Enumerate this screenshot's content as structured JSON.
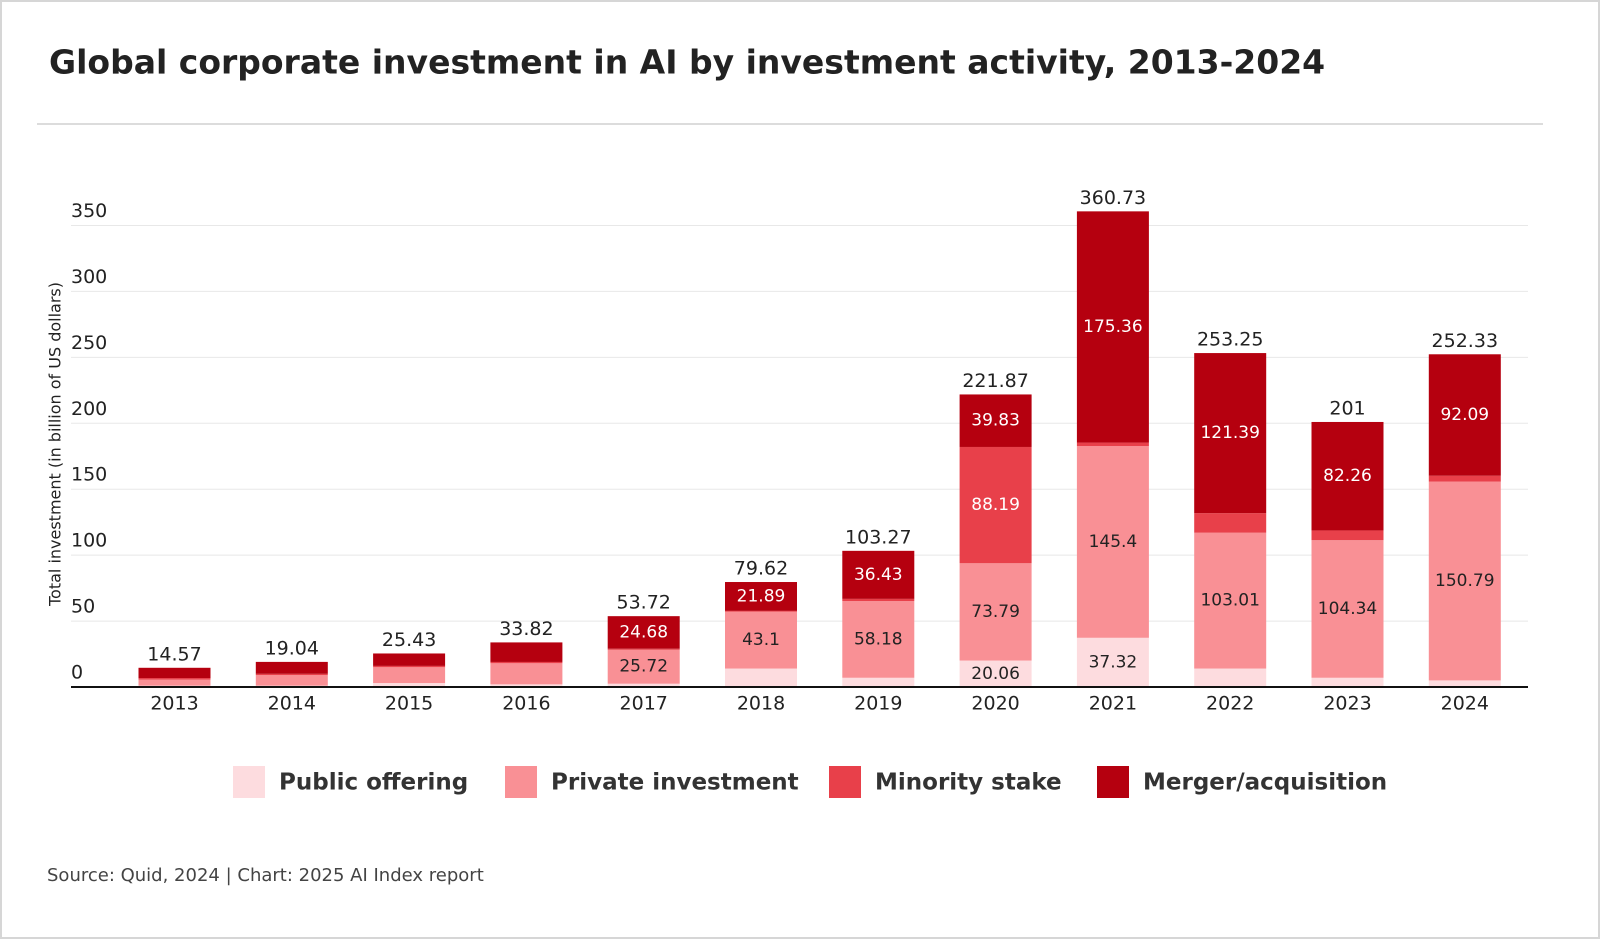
{
  "chart_data": {
    "type": "stacked_bar",
    "title": "Global corporate investment in AI by investment activity, 2013-2024",
    "y_label": "Total investment (in billion of US dollars)",
    "source": "Source: Quid, 2024 | Chart: 2025 AI Index report",
    "categories": [
      "2013",
      "2014",
      "2015",
      "2016",
      "2017",
      "2018",
      "2019",
      "2020",
      "2021",
      "2022",
      "2023",
      "2024"
    ],
    "series": [
      {
        "name": "Public offering",
        "color": "#fddcdf",
        "label_color": "#222222",
        "values": [
          1.0,
          1.0,
          3.0,
          2.0,
          2.5,
          14.0,
          7.0,
          20.06,
          37.32,
          14.0,
          7.0,
          5.0
        ]
      },
      {
        "name": "Private investment",
        "color": "#f99095",
        "label_color": "#222222",
        "values": [
          4.6,
          8.0,
          12.0,
          16.0,
          25.72,
          43.1,
          58.18,
          73.79,
          145.4,
          103.01,
          104.34,
          150.79
        ]
      },
      {
        "name": "Minority stake",
        "color": "#e8404a",
        "label_color": "#ffffff",
        "values": [
          1.2,
          1.0,
          1.0,
          1.0,
          0.82,
          0.63,
          1.66,
          88.19,
          2.65,
          14.85,
          7.4,
          4.45
        ]
      },
      {
        "name": "Merger/acquisition",
        "color": "#b5000f",
        "label_color": "#ffffff",
        "values": [
          7.77,
          9.04,
          9.43,
          14.82,
          24.68,
          21.89,
          36.43,
          39.83,
          175.36,
          121.39,
          82.26,
          92.09
        ]
      }
    ],
    "totals": [
      14.57,
      19.04,
      25.43,
      33.82,
      53.72,
      79.62,
      103.27,
      221.87,
      360.73,
      253.25,
      201,
      252.33
    ],
    "ylim": [
      0,
      350
    ],
    "yticks": [
      0,
      50,
      100,
      150,
      200,
      250,
      300,
      350
    ],
    "grid": true
  }
}
